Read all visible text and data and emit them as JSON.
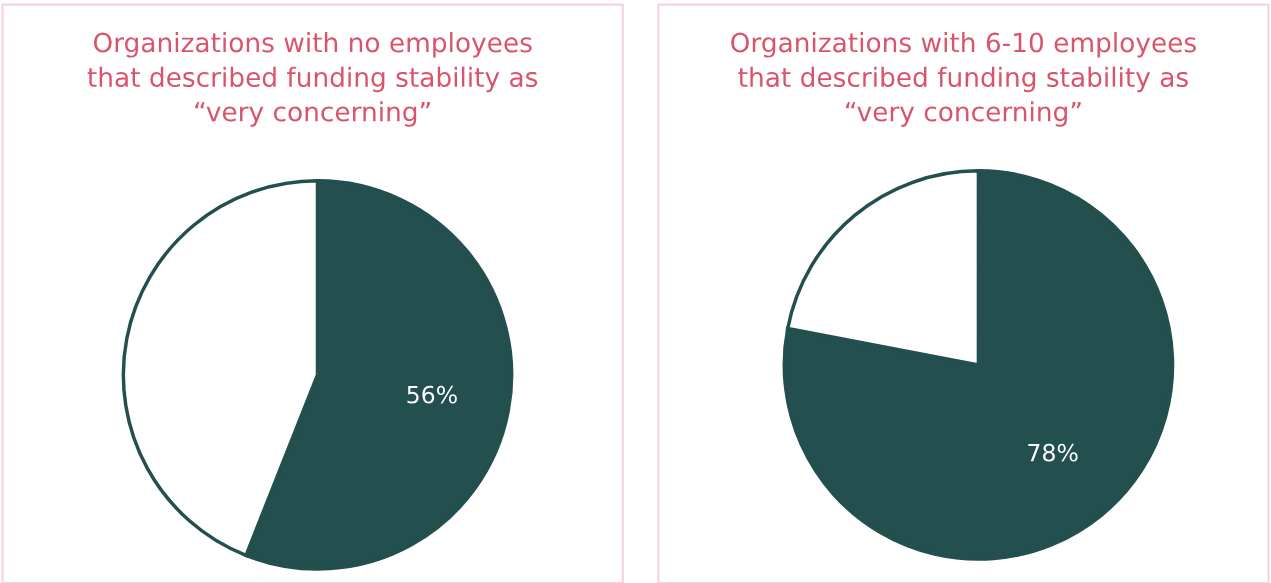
{
  "chart_data": [
    {
      "type": "pie",
      "title": "Organizations with no employees\nthat described funding stability as\n“very concerning”",
      "categories": [
        null,
        null
      ],
      "values": [
        56,
        44
      ],
      "colors": [
        "#244f4f",
        "#ffffff"
      ],
      "value_labels": [
        "56%",
        null
      ]
    },
    {
      "type": "pie",
      "title": "Organizations with 6-10 employees\nthat described funding stability as\n“very concerning”",
      "categories": [
        null,
        null
      ],
      "values": [
        78,
        22
      ],
      "colors": [
        "#244f4f",
        "#ffffff"
      ],
      "value_labels": [
        "78%",
        null
      ]
    }
  ]
}
